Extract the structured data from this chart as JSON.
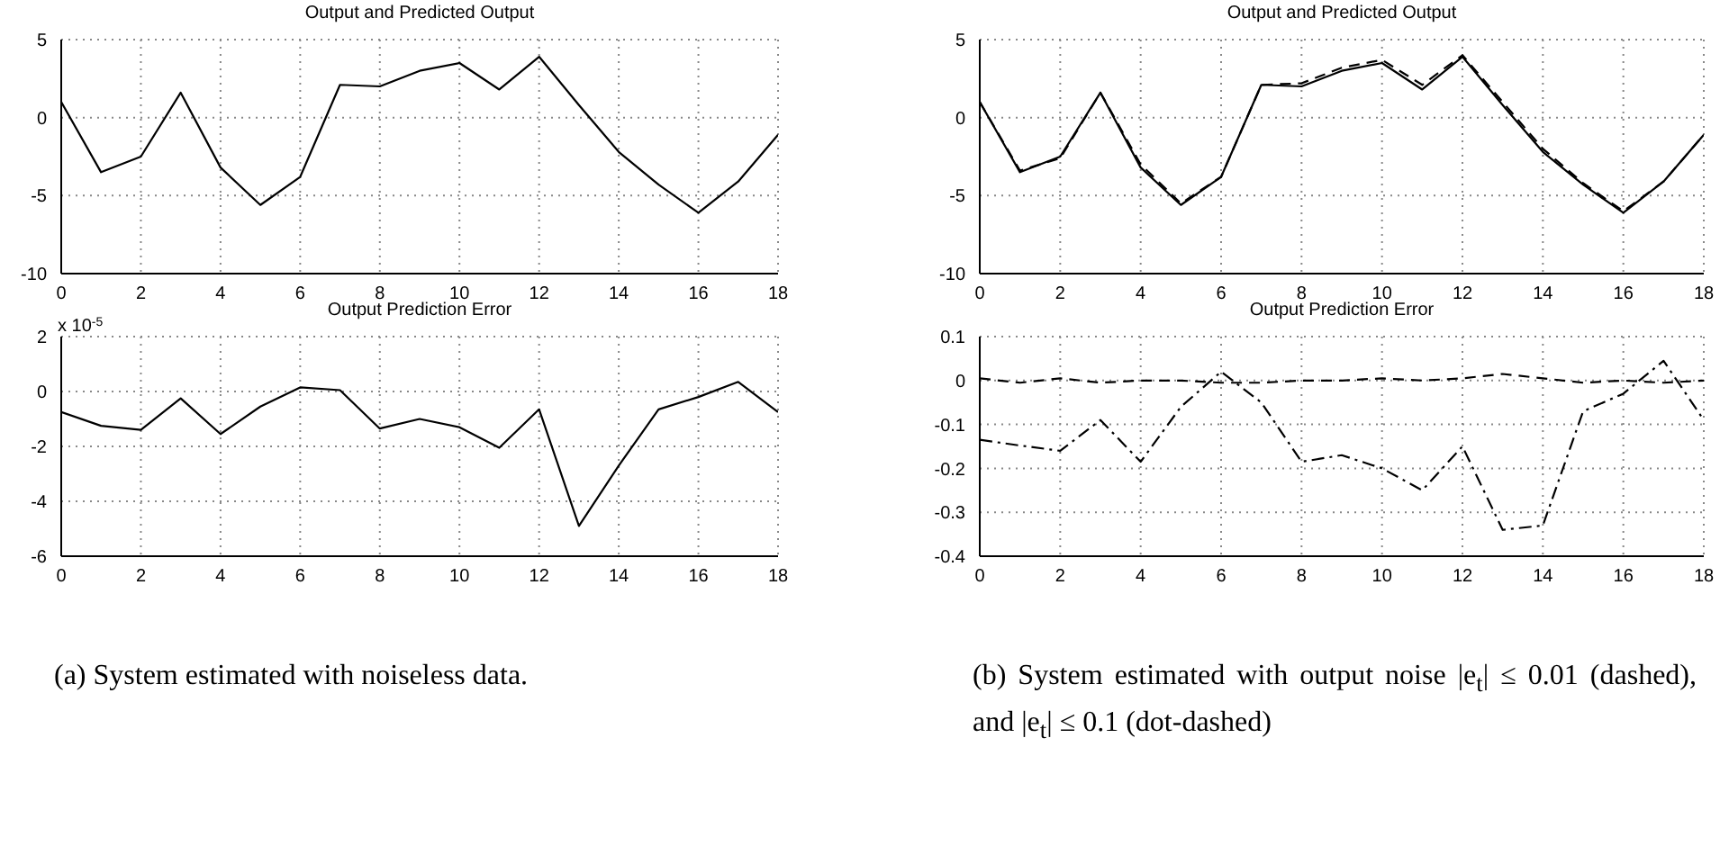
{
  "chart_data": [
    {
      "type": "line",
      "title": "Output and Predicted Output",
      "x": [
        0,
        1,
        2,
        3,
        4,
        5,
        6,
        7,
        8,
        9,
        10,
        11,
        12,
        13,
        14,
        15,
        16,
        17,
        18
      ],
      "series": [
        {
          "color": "#000000",
          "line_style": "solid",
          "values": [
            1,
            -3.5,
            -2.5,
            1.6,
            -3.2,
            -5.6,
            -3.8,
            2.1,
            2.0,
            3.0,
            3.5,
            1.8,
            3.9,
            0.8,
            -2.2,
            -4.3,
            -6.1,
            -4.1,
            -1.1
          ]
        }
      ],
      "xlim": [
        0,
        18
      ],
      "xticks": [
        0,
        2,
        4,
        6,
        8,
        10,
        12,
        14,
        16,
        18
      ],
      "ylim": [
        -10,
        5
      ],
      "yticks": [
        -10,
        -5,
        0,
        5
      ],
      "grid": true
    },
    {
      "type": "line",
      "title": "Output and Predicted Output",
      "x": [
        0,
        1,
        2,
        3,
        4,
        5,
        6,
        7,
        8,
        9,
        10,
        11,
        12,
        13,
        14,
        15,
        16,
        17,
        18
      ],
      "series": [
        {
          "color": "#000000",
          "line_style": "solid",
          "values": [
            1,
            -3.5,
            -2.5,
            1.6,
            -3.2,
            -5.6,
            -3.8,
            2.1,
            2.0,
            3.0,
            3.5,
            1.8,
            3.9,
            0.8,
            -2.2,
            -4.3,
            -6.1,
            -4.1,
            -1.1
          ]
        },
        {
          "color": "#000000",
          "line_style": "dashed",
          "values": [
            1,
            -3.4,
            -2.6,
            1.6,
            -3.0,
            -5.5,
            -3.8,
            2.1,
            2.2,
            3.2,
            3.7,
            2.1,
            4.0,
            1.0,
            -2.0,
            -4.2,
            -6.0,
            -4.1,
            -1.1
          ]
        }
      ],
      "xlim": [
        0,
        18
      ],
      "xticks": [
        0,
        2,
        4,
        6,
        8,
        10,
        12,
        14,
        16,
        18
      ],
      "ylim": [
        -10,
        5
      ],
      "yticks": [
        -10,
        -5,
        0,
        5
      ],
      "grid": true
    },
    {
      "type": "line",
      "title": "Output Prediction Error",
      "ylabel": "x 10$^{-5}$",
      "x": [
        0,
        1,
        2,
        3,
        4,
        5,
        6,
        7,
        8,
        9,
        10,
        11,
        12,
        13,
        14,
        15,
        16,
        17,
        18
      ],
      "series": [
        {
          "color": "#000000",
          "line_style": "solid",
          "values": [
            -0.75,
            -1.25,
            -1.4,
            -0.25,
            -1.55,
            -0.55,
            0.15,
            0.05,
            -1.35,
            -1.0,
            -1.3,
            -2.05,
            -0.65,
            -4.9,
            -2.7,
            -0.65,
            -0.2,
            0.35,
            -0.75
          ]
        }
      ],
      "xlim": [
        0,
        18
      ],
      "xticks": [
        0,
        2,
        4,
        6,
        8,
        10,
        12,
        14,
        16,
        18
      ],
      "ylim": [
        -6,
        2
      ],
      "yticks": [
        -6,
        -4,
        -2,
        0,
        2
      ],
      "grid": true,
      "annotations": [
        "(a) System estimated with noiseless data."
      ]
    },
    {
      "type": "line",
      "title": "Output Prediction Error",
      "x": [
        0,
        1,
        2,
        3,
        4,
        5,
        6,
        7,
        8,
        9,
        10,
        11,
        12,
        13,
        14,
        15,
        16,
        17,
        18
      ],
      "series": [
        {
          "color": "#000000",
          "line_style": "dashed",
          "values": [
            0.005,
            -0.005,
            0.005,
            -0.005,
            0,
            0,
            -0.005,
            -0.005,
            0,
            0,
            0.005,
            0,
            0.005,
            0.015,
            0.005,
            -0.005,
            0,
            -0.005,
            0
          ]
        },
        {
          "color": "#000000",
          "line_style": "dashdot",
          "values": [
            -0.135,
            -0.148,
            -0.16,
            -0.09,
            -0.185,
            -0.06,
            0.02,
            -0.05,
            -0.185,
            -0.17,
            -0.2,
            -0.25,
            -0.15,
            -0.34,
            -0.33,
            -0.07,
            -0.03,
            0.045,
            -0.09
          ]
        }
      ],
      "xlim": [
        0,
        18
      ],
      "xticks": [
        0,
        2,
        4,
        6,
        8,
        10,
        12,
        14,
        16,
        18
      ],
      "ylim": [
        -0.4,
        0.1
      ],
      "yticks": [
        -0.4,
        -0.3,
        -0.2,
        -0.1,
        0,
        0.1
      ],
      "grid": true,
      "annotations": [
        "(b) System estimated with output noise |e$_{t}$| ≤ 0.01 (dashed), and |e$_{t}$| ≤ 0.1 (dot-dashed)"
      ]
    }
  ]
}
